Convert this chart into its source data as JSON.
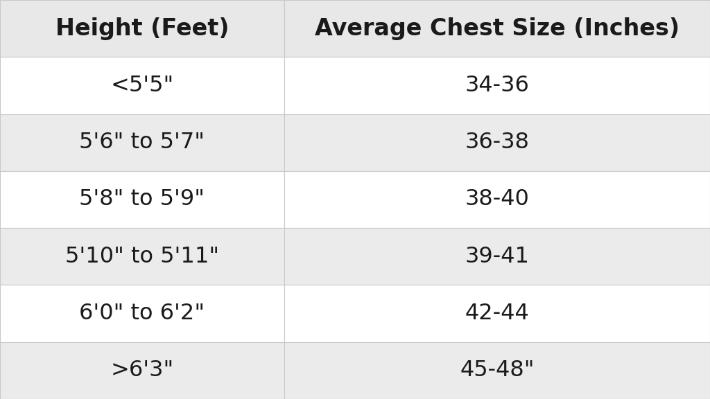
{
  "col_headers": [
    "Height (Feet)",
    "Average Chest Size (Inches)"
  ],
  "rows": [
    [
      "<5'5\"",
      "34-36"
    ],
    [
      "5'6\" to 5'7\"",
      "36-38"
    ],
    [
      "5'8\" to 5'9\"",
      "38-40"
    ],
    [
      "5'10\" to 5'11\"",
      "39-41"
    ],
    [
      "6'0\" to 6'2\"",
      "42-44"
    ],
    [
      ">6'3\"",
      "45-48\""
    ]
  ],
  "header_bg": "#e8e8e8",
  "row_bg_white": "#ffffff",
  "row_bg_gray": "#ebebeb",
  "border_color": "#c8c8c8",
  "text_color": "#1a1a1a",
  "header_fontsize": 24,
  "row_fontsize": 23,
  "background_color": "#e0e0e0",
  "col_split": 0.4
}
